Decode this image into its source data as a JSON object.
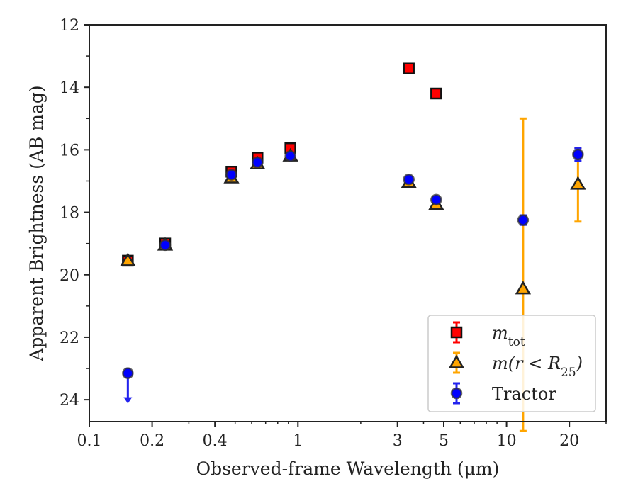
{
  "chart_data": {
    "type": "scatter",
    "xlabel": "Observed-frame Wavelength (μm)",
    "ylabel": "Apparent Brightness (AB mag)",
    "xscale": "log",
    "yinverted": true,
    "xlim": [
      0.1,
      30
    ],
    "ylim": [
      24.7,
      12
    ],
    "xticks": [
      {
        "v": 0.1,
        "label": "0.1"
      },
      {
        "v": 0.2,
        "label": "0.2"
      },
      {
        "v": 0.4,
        "label": "0.4"
      },
      {
        "v": 1,
        "label": "1"
      },
      {
        "v": 3,
        "label": "3"
      },
      {
        "v": 5,
        "label": "5"
      },
      {
        "v": 10,
        "label": "10"
      },
      {
        "v": 20,
        "label": "20"
      }
    ],
    "yticks": [
      {
        "v": 12,
        "label": "12"
      },
      {
        "v": 14,
        "label": "14"
      },
      {
        "v": 16,
        "label": "16"
      },
      {
        "v": 18,
        "label": "18"
      },
      {
        "v": 20,
        "label": "20"
      },
      {
        "v": 22,
        "label": "22"
      },
      {
        "v": 24,
        "label": "24"
      }
    ],
    "legend_position": "lower right",
    "series": [
      {
        "name": "m_tot",
        "legend": {
          "main": "m",
          "sub": "tot",
          "italic_main": true
        },
        "marker": "square",
        "color": "#ff0000",
        "errcolor": "#ff0000",
        "points": [
          {
            "x": 0.153,
            "y": 19.55
          },
          {
            "x": 0.231,
            "y": 19.0
          },
          {
            "x": 0.48,
            "y": 16.7
          },
          {
            "x": 0.64,
            "y": 16.25
          },
          {
            "x": 0.92,
            "y": 15.95
          },
          {
            "x": 3.4,
            "y": 13.4
          },
          {
            "x": 4.6,
            "y": 14.2
          }
        ]
      },
      {
        "name": "m(r<R25)",
        "legend": {
          "main": "m(r < R",
          "sub": "25",
          "tail": ")",
          "italic_main": true
        },
        "marker": "triangle",
        "color": "#ffa500",
        "errcolor": "#ffa500",
        "points": [
          {
            "x": 0.153,
            "y": 19.55
          },
          {
            "x": 0.231,
            "y": 19.05
          },
          {
            "x": 0.48,
            "y": 16.9
          },
          {
            "x": 0.64,
            "y": 16.45
          },
          {
            "x": 0.92,
            "y": 16.2
          },
          {
            "x": 3.4,
            "y": 17.05
          },
          {
            "x": 4.6,
            "y": 17.75
          },
          {
            "x": 12,
            "y": 20.45,
            "err": [
              15.0,
              25.0
            ]
          },
          {
            "x": 22,
            "y": 17.1,
            "err": [
              15.95,
              18.3
            ]
          }
        ]
      },
      {
        "name": "Tractor",
        "legend": {
          "main": "Tractor"
        },
        "marker": "circle",
        "color": "#0000ff",
        "errcolor": "#2222ee",
        "points": [
          {
            "x": 0.153,
            "y": 23.15,
            "upper_limit": true
          },
          {
            "x": 0.231,
            "y": 19.05
          },
          {
            "x": 0.48,
            "y": 16.8
          },
          {
            "x": 0.64,
            "y": 16.4
          },
          {
            "x": 0.92,
            "y": 16.2
          },
          {
            "x": 3.4,
            "y": 16.95
          },
          {
            "x": 4.6,
            "y": 17.6
          },
          {
            "x": 12,
            "y": 18.25,
            "err": [
              18.1,
              18.4
            ]
          },
          {
            "x": 22,
            "y": 16.15,
            "err": [
              15.95,
              16.35
            ]
          }
        ]
      }
    ]
  }
}
